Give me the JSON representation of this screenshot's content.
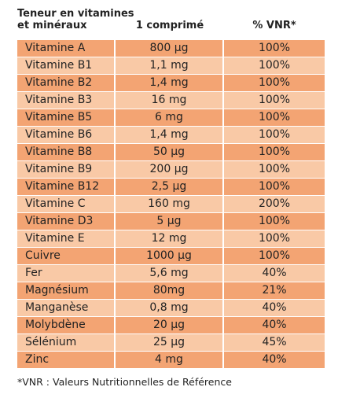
{
  "table": {
    "column_headers": [
      [
        "Teneur en vitamines",
        "et minéraux"
      ],
      "1 comprimé",
      "% VNR*"
    ],
    "rows": [
      [
        "Vitamine A",
        "800 µg",
        "100%"
      ],
      [
        "Vitamine B1",
        "1,1 mg",
        "100%"
      ],
      [
        "Vitamine B2",
        "1,4 mg",
        "100%"
      ],
      [
        "Vitamine B3",
        "16 mg",
        "100%"
      ],
      [
        "Vitamine B5",
        "6 mg",
        "100%"
      ],
      [
        "Vitamine B6",
        "1,4 mg",
        "100%"
      ],
      [
        "Vitamine B8",
        "50 µg",
        "100%"
      ],
      [
        "Vitamine B9",
        "200 µg",
        "100%"
      ],
      [
        "Vitamine B12",
        "2,5 µg",
        "100%"
      ],
      [
        "Vitamine C",
        "160 mg",
        "200%"
      ],
      [
        "Vitamine D3",
        "5 µg",
        "100%"
      ],
      [
        "Vitamine E",
        "12 mg",
        "100%"
      ],
      [
        "Cuivre",
        "1000 µg",
        "100%"
      ],
      [
        "Fer",
        "5,6 mg",
        "40%"
      ],
      [
        "Magnésium",
        "80mg",
        "21%"
      ],
      [
        "Manganèse",
        "0,8 mg",
        "40%"
      ],
      [
        "Molybdène",
        "20 µg",
        "40%"
      ],
      [
        "Sélénium",
        "25 µg",
        "45%"
      ],
      [
        "Zinc",
        "4 mg",
        "40%"
      ]
    ],
    "footnote": "*VNR : Valeurs Nutritionnelles de Référence"
  }
}
